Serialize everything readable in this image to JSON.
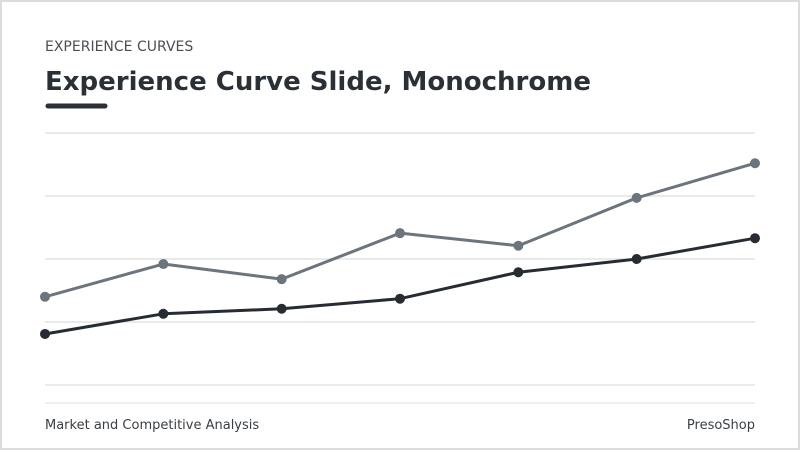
{
  "kicker": "EXPERIENCE CURVES",
  "footer": {
    "left": "Market and Competitive Analysis",
    "right": "PresoShop"
  },
  "chart_data": {
    "type": "line",
    "title": "Experience Curve Slide, Monochrome",
    "ylim": [
      0,
      4
    ],
    "yticks": [
      0,
      1,
      2,
      3,
      4
    ],
    "grid": true,
    "series": [
      {
        "color": "#6c757d",
        "values": [
          1.4,
          1.92,
          1.68,
          2.41,
          2.21,
          2.97,
          3.52
        ]
      },
      {
        "color": "#262c31",
        "values": [
          0.81,
          1.13,
          1.21,
          1.37,
          1.79,
          2.0,
          2.33
        ]
      }
    ]
  }
}
